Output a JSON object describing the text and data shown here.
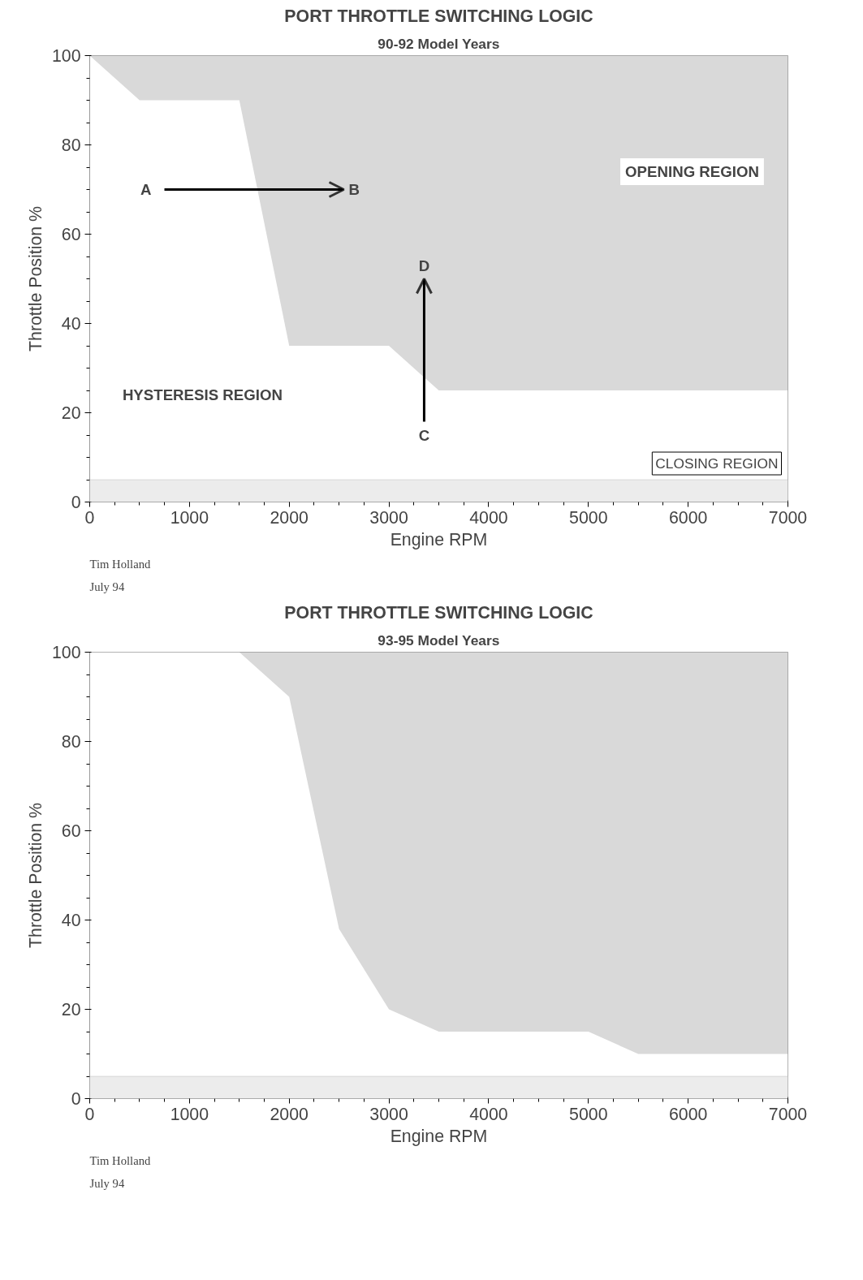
{
  "chart_data": [
    {
      "type": "area",
      "stacked": true,
      "title": "PORT THROTTLE SWITCHING LOGIC",
      "subtitle": "90-92 Model Years",
      "xlabel": "Engine RPM",
      "ylabel": "Throttle Position %",
      "x": [
        0,
        500,
        1500,
        2000,
        3000,
        3500,
        7000
      ],
      "series": [
        {
          "color": "#ffffff",
          "values": [
            100,
            90,
            90,
            35,
            35,
            25,
            25
          ]
        },
        {
          "color": "#d9d9d9",
          "values": [
            0,
            10,
            10,
            65,
            65,
            75,
            75
          ]
        }
      ],
      "xlim": [
        0,
        7000
      ],
      "ylim": [
        0,
        100
      ],
      "xticks": [
        0,
        1000,
        2000,
        3000,
        4000,
        5000,
        6000,
        7000
      ],
      "yticks": [
        0,
        20,
        40,
        60,
        80,
        100
      ],
      "bands": [
        {
          "axis": "y",
          "from": 0,
          "to": 5,
          "label": "CLOSING REGION",
          "color": "#ececec"
        }
      ],
      "annotations": [
        "A",
        "B",
        "C",
        "D",
        "OPENING REGION",
        "HYSTERESIS REGION",
        "Tim Holland",
        "July 94"
      ]
    },
    {
      "type": "area",
      "stacked": true,
      "title": "PORT THROTTLE SWITCHING LOGIC",
      "subtitle": "93-95 Model Years",
      "xlabel": "Engine RPM",
      "ylabel": "Throttle Position %",
      "x": [
        0,
        1500,
        2000,
        2500,
        3000,
        3500,
        5000,
        5500,
        7000
      ],
      "series": [
        {
          "color": "#ffffff",
          "values": [
            100,
            100,
            90,
            38,
            20,
            15,
            15,
            10,
            10
          ]
        },
        {
          "color": "#d9d9d9",
          "values": [
            0,
            0,
            10,
            62,
            80,
            85,
            85,
            90,
            90
          ]
        }
      ],
      "xlim": [
        0,
        7000
      ],
      "ylim": [
        0,
        100
      ],
      "xticks": [
        0,
        1000,
        2000,
        3000,
        4000,
        5000,
        6000,
        7000
      ],
      "yticks": [
        0,
        20,
        40,
        60,
        80,
        100
      ],
      "bands": [
        {
          "axis": "y",
          "from": 0,
          "to": 5,
          "color": "#ececec"
        }
      ],
      "annotations": [
        "Tim Holland",
        "July 94"
      ]
    }
  ]
}
